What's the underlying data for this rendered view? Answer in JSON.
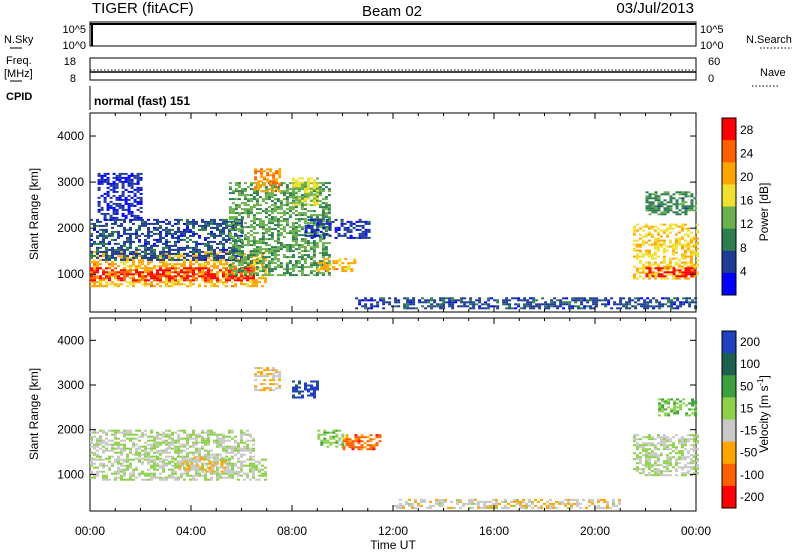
{
  "header": {
    "radar": "TIGER (fitACF)",
    "beam": "Beam 02",
    "date": "03/Jul/2013"
  },
  "top_panel_labels": {
    "nsky": "N.Sky",
    "nsky_ticks": [
      "10^5",
      "10^0"
    ],
    "nsearch": "N.Search",
    "nsearch_ticks": [
      "10^5",
      "10^0"
    ],
    "freq": "Freq.",
    "freq_unit": "[MHz]",
    "freq_ticks": [
      "18",
      "8"
    ],
    "nave": "Nave",
    "nave_ticks": [
      "60",
      "0"
    ],
    "cpid": "CPID",
    "cpid_text": "normal (fast) 151"
  },
  "colors": {
    "power_scale": [
      "#0000ff",
      "#1e3c96",
      "#2e7d4f",
      "#6ab04c",
      "#f0e030",
      "#ffa500",
      "#ff6000",
      "#ff0000"
    ],
    "velocity_scale": [
      "#2040c0",
      "#1e6050",
      "#3ca03c",
      "#8ed04a",
      "#c8c8c8",
      "#ffa500",
      "#ff6000",
      "#ff0000"
    ]
  },
  "chart_data": [
    {
      "type": "heatmap",
      "name": "power",
      "ylabel": "Slant Range [km]",
      "xlabel": "Time UT",
      "x_ticks": [
        "00:00",
        "04:00",
        "08:00",
        "12:00",
        "16:00",
        "20:00",
        "00:00"
      ],
      "xlim_hours": [
        0,
        24
      ],
      "y_ticks": [
        "1000",
        "2000",
        "3000",
        "4000"
      ],
      "ylim": [
        180,
        4500
      ],
      "colorbar": {
        "label": "Power [dB]",
        "ticks": [
          "4",
          "8",
          "12",
          "16",
          "20",
          "24",
          "28"
        ],
        "range": [
          0,
          30
        ]
      },
      "regions": [
        {
          "t0": 0.0,
          "t1": 7.0,
          "r0": 750,
          "r1": 1500,
          "value": 20
        },
        {
          "t0": 0.0,
          "t1": 6.5,
          "r0": 850,
          "r1": 1150,
          "value": 27
        },
        {
          "t0": 0.0,
          "t1": 6.0,
          "r0": 1300,
          "r1": 2200,
          "value": 6
        },
        {
          "t0": 0.3,
          "t1": 2.0,
          "r0": 2200,
          "r1": 3200,
          "value": 4
        },
        {
          "t0": 5.5,
          "t1": 9.5,
          "r0": 1000,
          "r1": 3000,
          "value": 12
        },
        {
          "t0": 6.5,
          "t1": 7.5,
          "r0": 2800,
          "r1": 3300,
          "value": 22
        },
        {
          "t0": 8.0,
          "t1": 9.0,
          "r0": 2500,
          "r1": 3100,
          "value": 16
        },
        {
          "t0": 8.5,
          "t1": 11.0,
          "r0": 1800,
          "r1": 2200,
          "value": 5
        },
        {
          "t0": 9.0,
          "t1": 10.5,
          "r0": 1050,
          "r1": 1350,
          "value": 20
        },
        {
          "t0": 10.5,
          "t1": 24.0,
          "r0": 250,
          "r1": 500,
          "value": 6
        },
        {
          "t0": 21.5,
          "t1": 24.0,
          "r0": 900,
          "r1": 2100,
          "value": 18
        },
        {
          "t0": 22.0,
          "t1": 24.0,
          "r0": 950,
          "r1": 1150,
          "value": 28
        },
        {
          "t0": 22.0,
          "t1": 24.0,
          "r0": 2300,
          "r1": 2800,
          "value": 10
        }
      ]
    },
    {
      "type": "heatmap",
      "name": "velocity",
      "ylabel": "Slant Range [km]",
      "xlabel": "Time UT",
      "x_ticks": [
        "00:00",
        "04:00",
        "08:00",
        "12:00",
        "16:00",
        "20:00",
        "00:00"
      ],
      "xlim_hours": [
        0,
        24
      ],
      "y_ticks": [
        "1000",
        "2000",
        "3000",
        "4000"
      ],
      "ylim": [
        180,
        4500
      ],
      "colorbar": {
        "label": "Velocity [m s",
        "label_sup": "-1",
        "label_end": "]",
        "ticks": [
          "200",
          "100",
          "50",
          "15",
          "-15",
          "-50",
          "-100",
          "-200"
        ],
        "range": [
          -250,
          250
        ]
      },
      "regions": [
        {
          "t0": 0.0,
          "t1": 7.0,
          "r0": 900,
          "r1": 1350,
          "value": 0
        },
        {
          "t0": 0.0,
          "t1": 6.5,
          "r0": 1350,
          "r1": 2000,
          "value": 0
        },
        {
          "t0": 3.5,
          "t1": 5.5,
          "r0": 1050,
          "r1": 1400,
          "value": -60
        },
        {
          "t0": 6.5,
          "t1": 7.5,
          "r0": 2900,
          "r1": 3400,
          "value": -60
        },
        {
          "t0": 8.0,
          "t1": 9.0,
          "r0": 2700,
          "r1": 3100,
          "value": 220
        },
        {
          "t0": 9.0,
          "t1": 10.0,
          "r0": 1600,
          "r1": 2000,
          "value": 40
        },
        {
          "t0": 10.0,
          "t1": 11.5,
          "r0": 1550,
          "r1": 1900,
          "value": -150
        },
        {
          "t0": 12.0,
          "t1": 21.0,
          "r0": 250,
          "r1": 450,
          "value": -40
        },
        {
          "t0": 21.5,
          "t1": 24.0,
          "r0": 1000,
          "r1": 1900,
          "value": 0
        },
        {
          "t0": 22.5,
          "t1": 24.0,
          "r0": 2300,
          "r1": 2700,
          "value": 60
        }
      ]
    }
  ]
}
